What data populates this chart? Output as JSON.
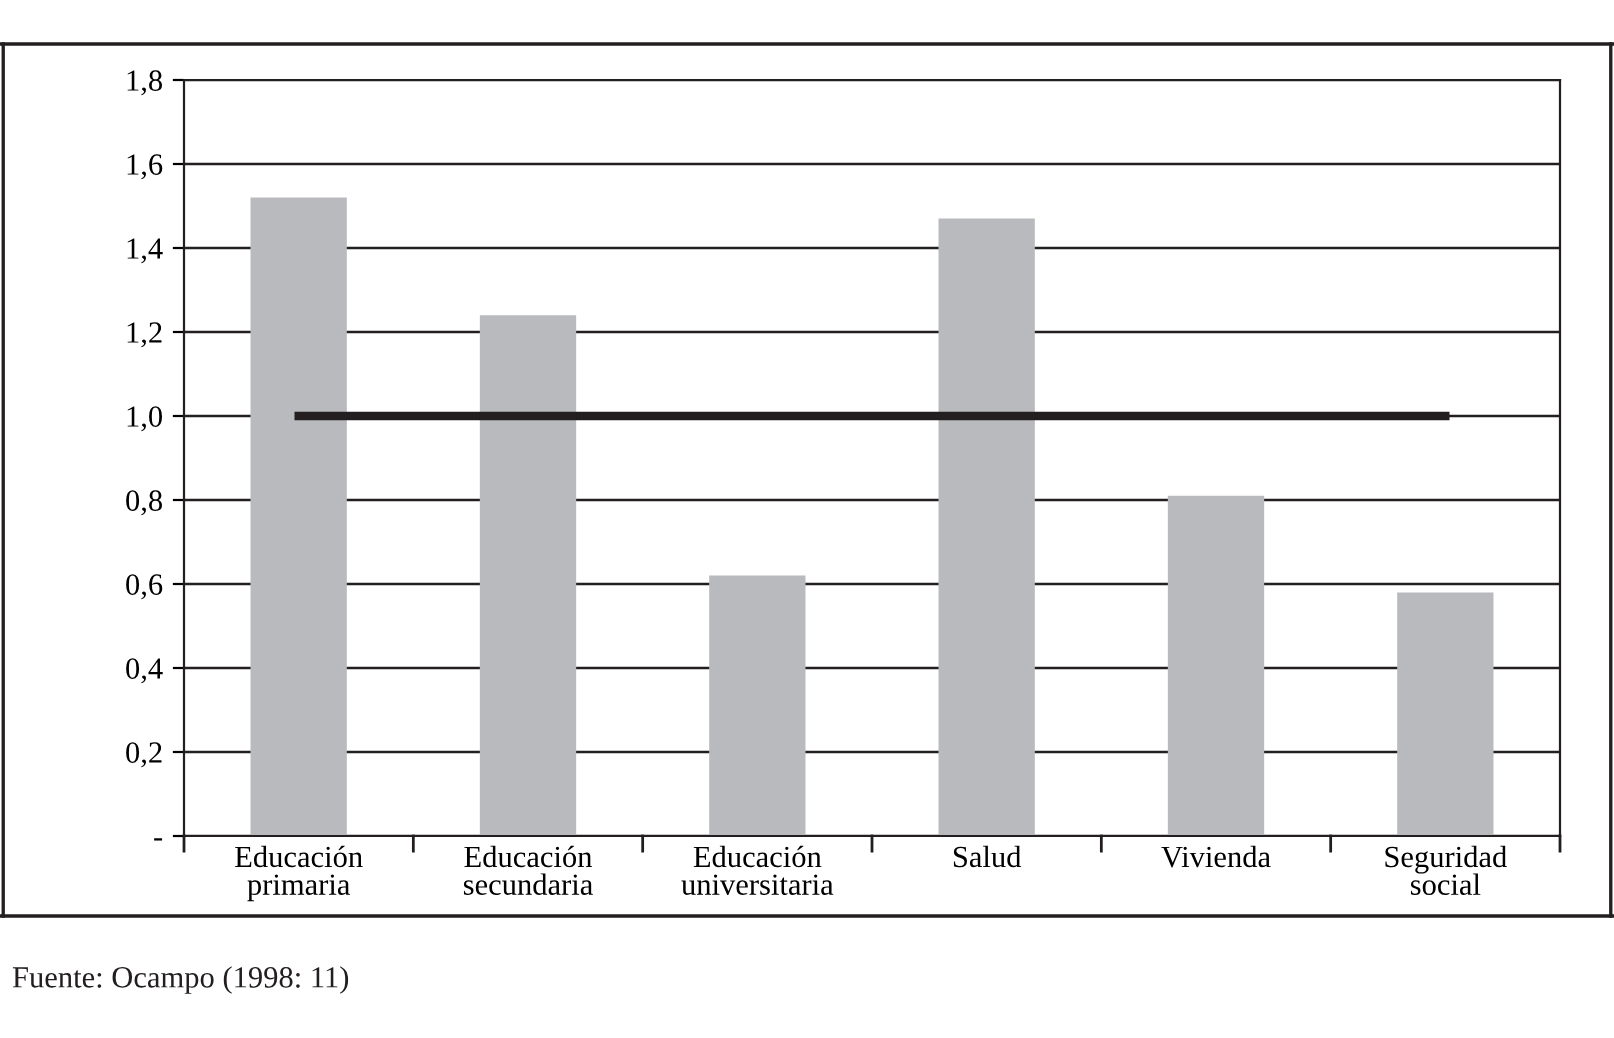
{
  "chart_data": {
    "type": "bar",
    "categories": [
      "Educación\nprimaria",
      "Educación\nsecundaria",
      "Educación\nuniversitaria",
      "Salud",
      "Vivienda",
      "Seguridad\nsocial"
    ],
    "series": [
      {
        "color": "#b9babd",
        "values": [
          1.52,
          1.24,
          0.62,
          1.47,
          0.81,
          0.58
        ]
      },
      {
        "type": "line",
        "color": "#231f20",
        "values": [
          1.0,
          1.0,
          1.0,
          1.0,
          1.0,
          1.0
        ]
      }
    ],
    "ylim": [
      0,
      1.8
    ],
    "yticks": [
      {
        "value": 0,
        "label": "-"
      },
      {
        "value": 0.2,
        "label": "0,2"
      },
      {
        "value": 0.4,
        "label": "0,4"
      },
      {
        "value": 0.6,
        "label": "0,6"
      },
      {
        "value": 0.8,
        "label": "0,8"
      },
      {
        "value": 1.0,
        "label": "1,0"
      },
      {
        "value": 1.2,
        "label": "1,2"
      },
      {
        "value": 1.4,
        "label": "1,4"
      },
      {
        "value": 1.6,
        "label": "1,6"
      },
      {
        "value": 1.8,
        "label": "1,8"
      }
    ],
    "grid": "y",
    "legend": false,
    "annotations": [
      "Fuente: Ocampo (1998: 11)"
    ]
  }
}
